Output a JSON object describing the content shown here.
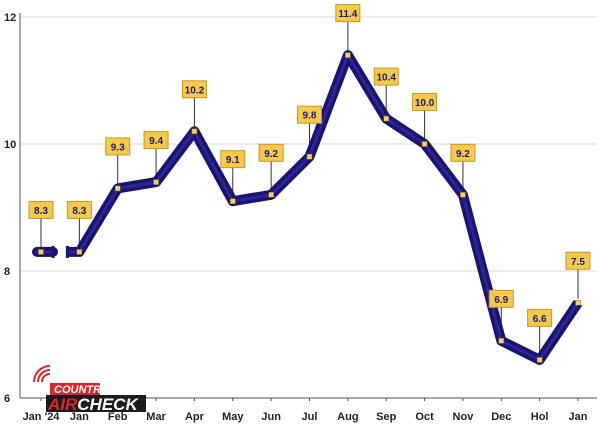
{
  "chart_data": {
    "type": "line",
    "title": "",
    "xlabel": "",
    "ylabel": "",
    "categories": [
      "Jan '24",
      "Jan",
      "Feb",
      "Mar",
      "Apr",
      "May",
      "Jun",
      "Jul",
      "Aug",
      "Sep",
      "Oct",
      "Nov",
      "Dec",
      "Hol",
      "Jan"
    ],
    "values": [
      8.3,
      8.3,
      9.3,
      9.4,
      10.2,
      9.1,
      9.2,
      9.8,
      11.4,
      10.4,
      10.0,
      9.2,
      6.9,
      6.6,
      7.5
    ],
    "data_labels": [
      "8.3",
      "8.3",
      "9.3",
      "9.4",
      "10.2",
      "9.1",
      "9.2",
      "9.8",
      "11.4",
      "10.4",
      "10.0",
      "9.2",
      "6.9",
      "6.6",
      "7.5"
    ],
    "line_break_after_index": 0,
    "y_ticks": [
      6,
      8,
      10,
      12
    ],
    "ylim": [
      6,
      12
    ],
    "grid": "horizontal",
    "legend": "none",
    "colors": {
      "line": "#1a1470",
      "line_highlight": "#3a34b8",
      "label_box": "#f7c948",
      "label_border": "#c8962a",
      "marker": "#f7d35a",
      "grid": "#d9d9d9",
      "axis": "#555555"
    }
  },
  "logo": {
    "line1": "COUNTRY",
    "line2_red": "AIR",
    "line2_white": "CHECK"
  }
}
